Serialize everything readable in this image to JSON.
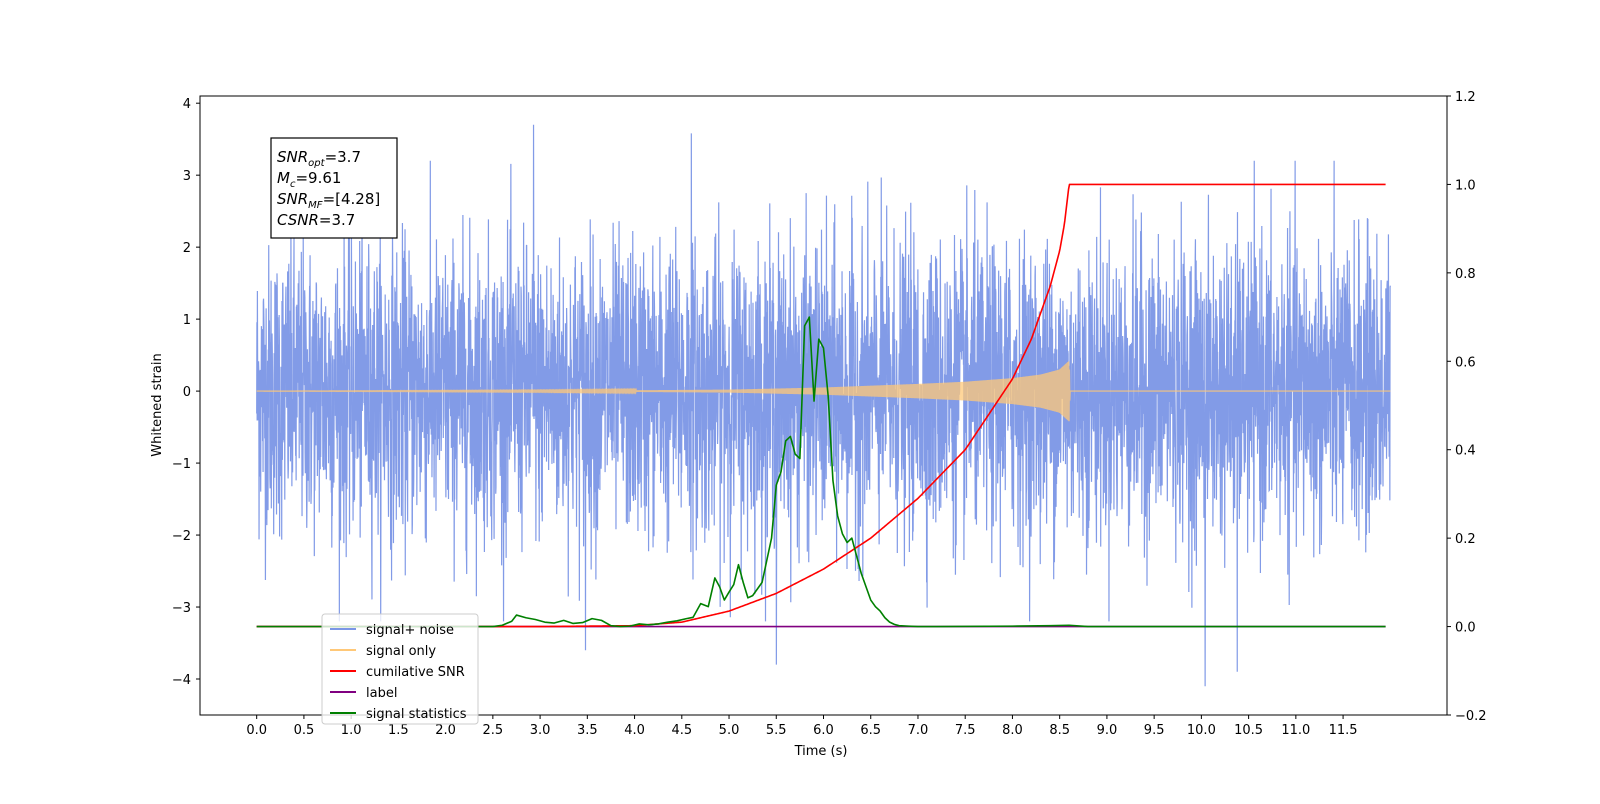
{
  "chart_data": {
    "type": "line",
    "xlabel": "Time (s)",
    "ylabel": "Whitened strain",
    "xlim": [
      -0.6,
      12.6
    ],
    "ylim_left": [
      -4.5,
      4.1
    ],
    "ylim_right": [
      -0.2,
      1.2
    ],
    "x_ticks": [
      "0.0",
      "0.5",
      "1.0",
      "1.5",
      "2.0",
      "2.5",
      "3.0",
      "3.5",
      "4.0",
      "4.5",
      "5.0",
      "5.5",
      "6.0",
      "6.5",
      "7.0",
      "7.5",
      "8.0",
      "8.5",
      "9.0",
      "9.5",
      "10.0",
      "10.5",
      "11.0",
      "11.5"
    ],
    "y_ticks_left": [
      "−4",
      "−3",
      "−2",
      "−1",
      "0",
      "1",
      "2",
      "3",
      "4"
    ],
    "y_ticks_right": [
      "−0.2",
      "0.0",
      "0.2",
      "0.4",
      "0.6",
      "0.8",
      "1.0",
      "1.2"
    ],
    "annotation": {
      "lines": [
        {
          "base": "SNR",
          "sub": "opt",
          "rest": "=3.7"
        },
        {
          "base": "M",
          "sub": "c",
          "rest": "=9.61"
        },
        {
          "base": "SNR",
          "sub": "MF",
          "rest": "=[4.28]"
        },
        {
          "base": "CSNR",
          "sub": "",
          "rest": "=3.7"
        }
      ]
    },
    "legend": {
      "placement": "lower-left",
      "entries": [
        {
          "label": "signal+ noise",
          "color": "#7b96e6"
        },
        {
          "label": "signal only",
          "color": "#ffc878"
        },
        {
          "label": "cumilative SNR",
          "color": "#ff0000"
        },
        {
          "label": "label",
          "color": "#800080"
        },
        {
          "label": "signal statistics",
          "color": "#008000"
        }
      ]
    },
    "series": [
      {
        "name": "signal+ noise",
        "axis": "left",
        "color": "#7b96e6",
        "x_range": [
          0.0,
          12.0
        ],
        "amplitude_std": 1.0,
        "notable_spikes": [
          [
            2.93,
            3.7
          ],
          [
            4.6,
            3.58
          ],
          [
            5.5,
            -3.8
          ],
          [
            10.04,
            -4.1
          ],
          [
            10.38,
            -3.9
          ],
          [
            3.48,
            -3.6
          ]
        ]
      },
      {
        "name": "signal only",
        "axis": "left",
        "color": "#ffc878",
        "x": [
          0.0,
          1.0,
          2.0,
          3.0,
          4.0,
          5.0,
          6.0,
          7.0,
          7.5,
          8.0,
          8.3,
          8.5,
          8.6,
          8.61,
          12.0
        ],
        "envelope": [
          0.0,
          0.002,
          0.004,
          0.006,
          0.01,
          0.02,
          0.05,
          0.1,
          0.13,
          0.18,
          0.23,
          0.3,
          0.42,
          0.0,
          0.0
        ]
      },
      {
        "name": "cumilative SNR",
        "axis": "right",
        "color": "#ff0000",
        "x": [
          0.0,
          3.0,
          4.0,
          4.5,
          5.0,
          5.5,
          6.0,
          6.5,
          7.0,
          7.5,
          8.0,
          8.2,
          8.4,
          8.5,
          8.55,
          8.6,
          11.95
        ],
        "values": [
          0.0,
          0.0,
          0.002,
          0.01,
          0.035,
          0.075,
          0.13,
          0.2,
          0.29,
          0.4,
          0.56,
          0.65,
          0.77,
          0.85,
          0.91,
          1.0,
          1.0
        ]
      },
      {
        "name": "label",
        "axis": "right",
        "color": "#800080",
        "x": [
          0.0,
          11.95
        ],
        "values": [
          0.0,
          0.0
        ]
      },
      {
        "name": "signal statistics",
        "axis": "right",
        "color": "#008000",
        "x": [
          0.0,
          2.5,
          2.6,
          2.7,
          2.75,
          2.85,
          2.95,
          3.05,
          3.15,
          3.25,
          3.35,
          3.45,
          3.55,
          3.65,
          3.75,
          3.85,
          3.95,
          4.05,
          4.15,
          4.25,
          4.35,
          4.45,
          4.55,
          4.62,
          4.7,
          4.78,
          4.85,
          4.9,
          4.95,
          5.0,
          5.05,
          5.1,
          5.15,
          5.2,
          5.25,
          5.3,
          5.35,
          5.4,
          5.45,
          5.5,
          5.55,
          5.6,
          5.65,
          5.7,
          5.75,
          5.8,
          5.85,
          5.9,
          5.95,
          6.0,
          6.05,
          6.1,
          6.15,
          6.2,
          6.25,
          6.3,
          6.35,
          6.4,
          6.45,
          6.5,
          6.55,
          6.6,
          6.65,
          6.7,
          6.75,
          6.8,
          6.9,
          7.0,
          7.2,
          8.0,
          8.4,
          8.6,
          8.8,
          11.95
        ],
        "values": [
          0.0,
          0.0,
          0.003,
          0.012,
          0.026,
          0.02,
          0.016,
          0.01,
          0.008,
          0.014,
          0.007,
          0.009,
          0.018,
          0.014,
          0.002,
          0.0,
          0.001,
          0.006,
          0.004,
          0.006,
          0.01,
          0.013,
          0.018,
          0.021,
          0.052,
          0.045,
          0.11,
          0.09,
          0.06,
          0.078,
          0.095,
          0.14,
          0.1,
          0.065,
          0.07,
          0.085,
          0.1,
          0.15,
          0.2,
          0.32,
          0.35,
          0.42,
          0.43,
          0.39,
          0.38,
          0.68,
          0.7,
          0.51,
          0.65,
          0.63,
          0.52,
          0.33,
          0.25,
          0.21,
          0.19,
          0.2,
          0.16,
          0.12,
          0.09,
          0.06,
          0.045,
          0.035,
          0.02,
          0.01,
          0.005,
          0.002,
          0.001,
          0.0,
          0.0,
          0.001,
          0.002,
          0.003,
          0.0,
          0.0
        ]
      }
    ]
  }
}
